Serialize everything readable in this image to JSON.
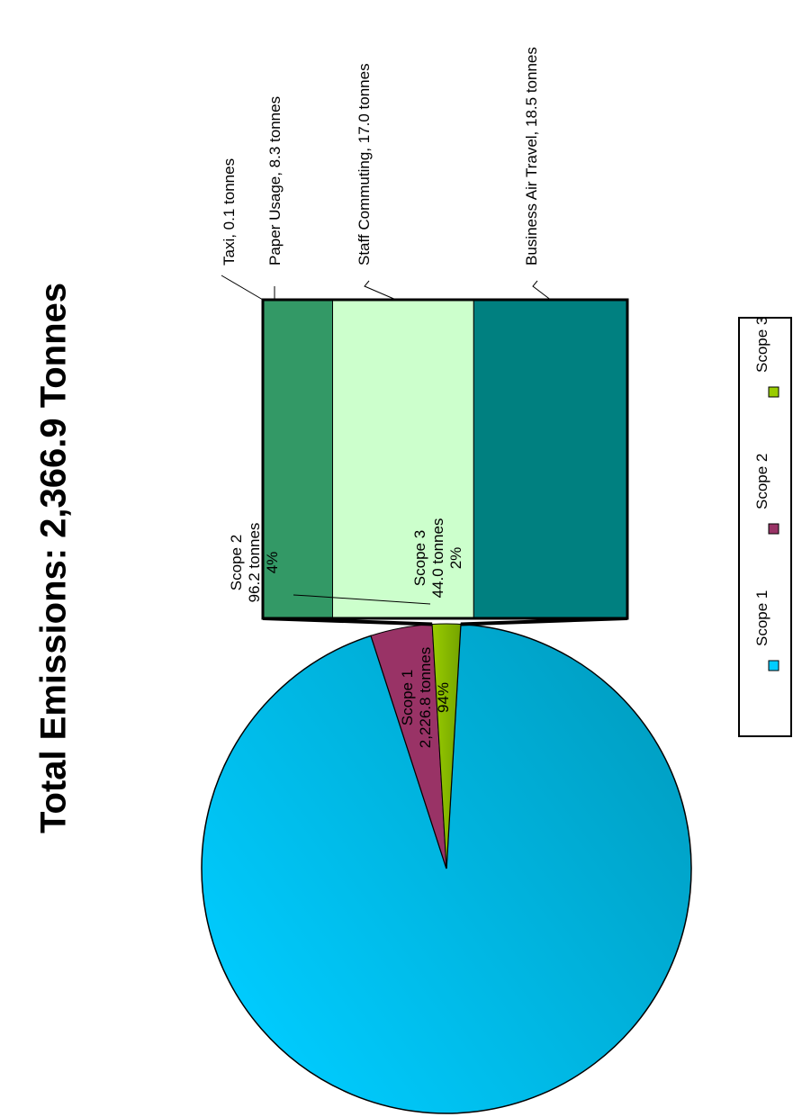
{
  "chart_data": {
    "type": "pie",
    "title": "Total Emissions: 2,366.9 Tonnes",
    "total": 2366.9,
    "series": [
      {
        "name": "Scope 1",
        "value": 2226.8,
        "value_label": "2,226.8 tonnes",
        "percent_label": "94%",
        "color": "#00aee0"
      },
      {
        "name": "Scope 2",
        "value": 96.2,
        "value_label": "96.2 tonnes",
        "percent_label": "4%",
        "color": "#993366"
      },
      {
        "name": "Scope 3",
        "value": 44.0,
        "value_label": "44.0 tonnes",
        "percent_label": "2%",
        "color": "#99cc00"
      }
    ],
    "breakdown": {
      "parent": "Scope 3",
      "type": "stacked-bar",
      "items": [
        {
          "label": "Taxi, 0.1 tonnes",
          "value": 0.1,
          "color": "#339966"
        },
        {
          "label": "Paper Usage, 8.3 tonnes",
          "value": 8.3,
          "color": "#339966"
        },
        {
          "label": "Staff Commuting, 17.0 tonnes",
          "value": 17.0,
          "color": "#ccffcc"
        },
        {
          "label": "Business Air Travel, 18.5 tonnes",
          "value": 18.5,
          "color": "#008080"
        }
      ]
    },
    "legend": {
      "placement": "right",
      "entries": [
        {
          "label": "Scope 1",
          "color": "#00ccff"
        },
        {
          "label": "Scope 2",
          "color": "#993366"
        },
        {
          "label": "Scope 3",
          "color": "#99cc00"
        }
      ]
    }
  }
}
